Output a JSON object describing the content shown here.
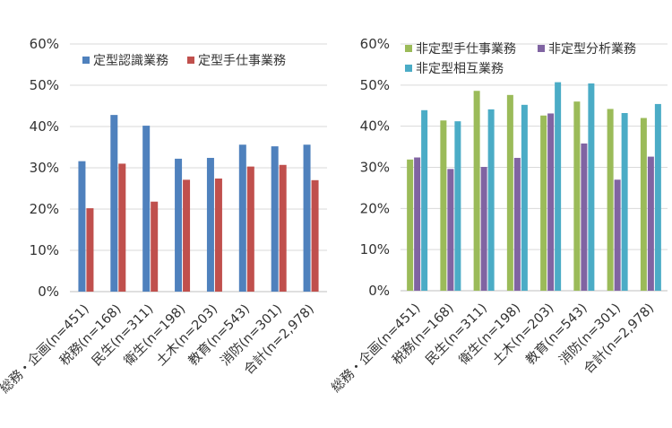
{
  "chart_data": [
    {
      "type": "bar",
      "categories": [
        "総務・企画(n=451)",
        "税務(n=168)",
        "民生(n=311)",
        "衛生(n=198)",
        "土木(n=203)",
        "教育(n=543)",
        "消防(n=301)",
        "合計(n=2,978)"
      ],
      "series": [
        {
          "name": "定型認識業務",
          "color": "#4F81BD",
          "values": [
            31.6,
            42.8,
            40.2,
            32.2,
            32.4,
            35.6,
            35.2,
            35.6
          ]
        },
        {
          "name": "定型手仕事業務",
          "color": "#C0504D",
          "values": [
            20.2,
            31.0,
            21.8,
            27.1,
            27.4,
            30.3,
            30.7,
            27.0
          ]
        }
      ],
      "yticks": [
        "0%",
        "10%",
        "20%",
        "30%",
        "40%",
        "50%",
        "60%"
      ],
      "ylim": [
        0,
        60
      ],
      "grid": true,
      "legend_position": "top-left"
    },
    {
      "type": "bar",
      "categories": [
        "総務・企画(n=451)",
        "税務(n=168)",
        "民生(n=311)",
        "衛生(n=198)",
        "土木(n=203)",
        "教育(n=543)",
        "消防(n=301)",
        "合計(n=2,978)"
      ],
      "series": [
        {
          "name": "非定型手仕事業務",
          "color": "#9BBB59",
          "values": [
            31.9,
            41.4,
            48.6,
            47.6,
            42.6,
            46.0,
            44.2,
            42.0
          ]
        },
        {
          "name": "非定型分析業務",
          "color": "#8064A2",
          "values": [
            32.4,
            29.6,
            30.1,
            32.3,
            43.1,
            35.8,
            27.0,
            32.6
          ]
        },
        {
          "name": "非定型相互業務",
          "color": "#4BACC6",
          "values": [
            43.9,
            41.2,
            44.1,
            45.2,
            50.7,
            50.4,
            43.2,
            45.4
          ]
        }
      ],
      "yticks": [
        "0%",
        "10%",
        "20%",
        "30%",
        "40%",
        "50%",
        "60%"
      ],
      "ylim": [
        0,
        60
      ],
      "grid": true,
      "legend_position": "top-left"
    }
  ]
}
